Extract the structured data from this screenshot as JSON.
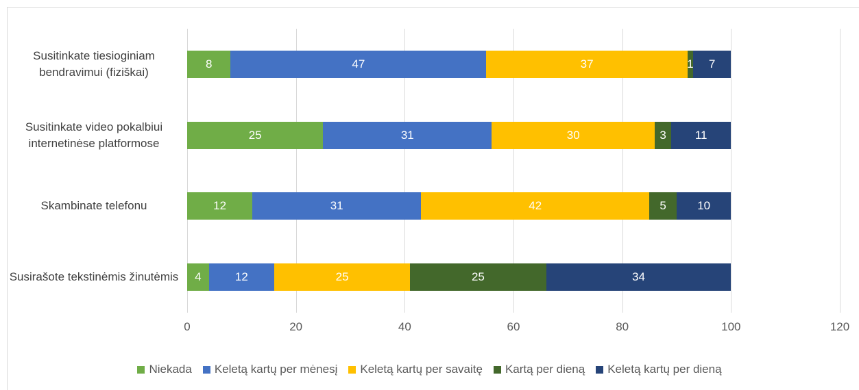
{
  "chart_data": {
    "type": "bar",
    "orientation": "horizontal",
    "stacked": true,
    "categories": [
      "Susitinkate tiesioginiam bendravimui (fiziškai)",
      "Susitinkate video pokalbiui internetinėse platformose",
      "Skambinate telefonu",
      "Susirašote tekstinėmis žinutėmis"
    ],
    "series": [
      {
        "name": "Niekada",
        "color": "#70ad47",
        "values": [
          8,
          25,
          12,
          4
        ]
      },
      {
        "name": "Keletą kartų per mėnesį",
        "color": "#4472c4",
        "values": [
          47,
          31,
          31,
          12
        ]
      },
      {
        "name": "Keletą kartų per savaitę",
        "color": "#ffc000",
        "values": [
          37,
          30,
          42,
          25
        ]
      },
      {
        "name": "Kartą per dieną",
        "color": "#43682b",
        "values": [
          1,
          3,
          5,
          25
        ]
      },
      {
        "name": "Keletą kartų per dieną",
        "color": "#264478",
        "values": [
          7,
          11,
          10,
          34
        ]
      }
    ],
    "xlim": [
      0,
      120
    ],
    "xticks": [
      0,
      20,
      40,
      60,
      80,
      100,
      120
    ],
    "grid": true,
    "legend": "bottom"
  }
}
